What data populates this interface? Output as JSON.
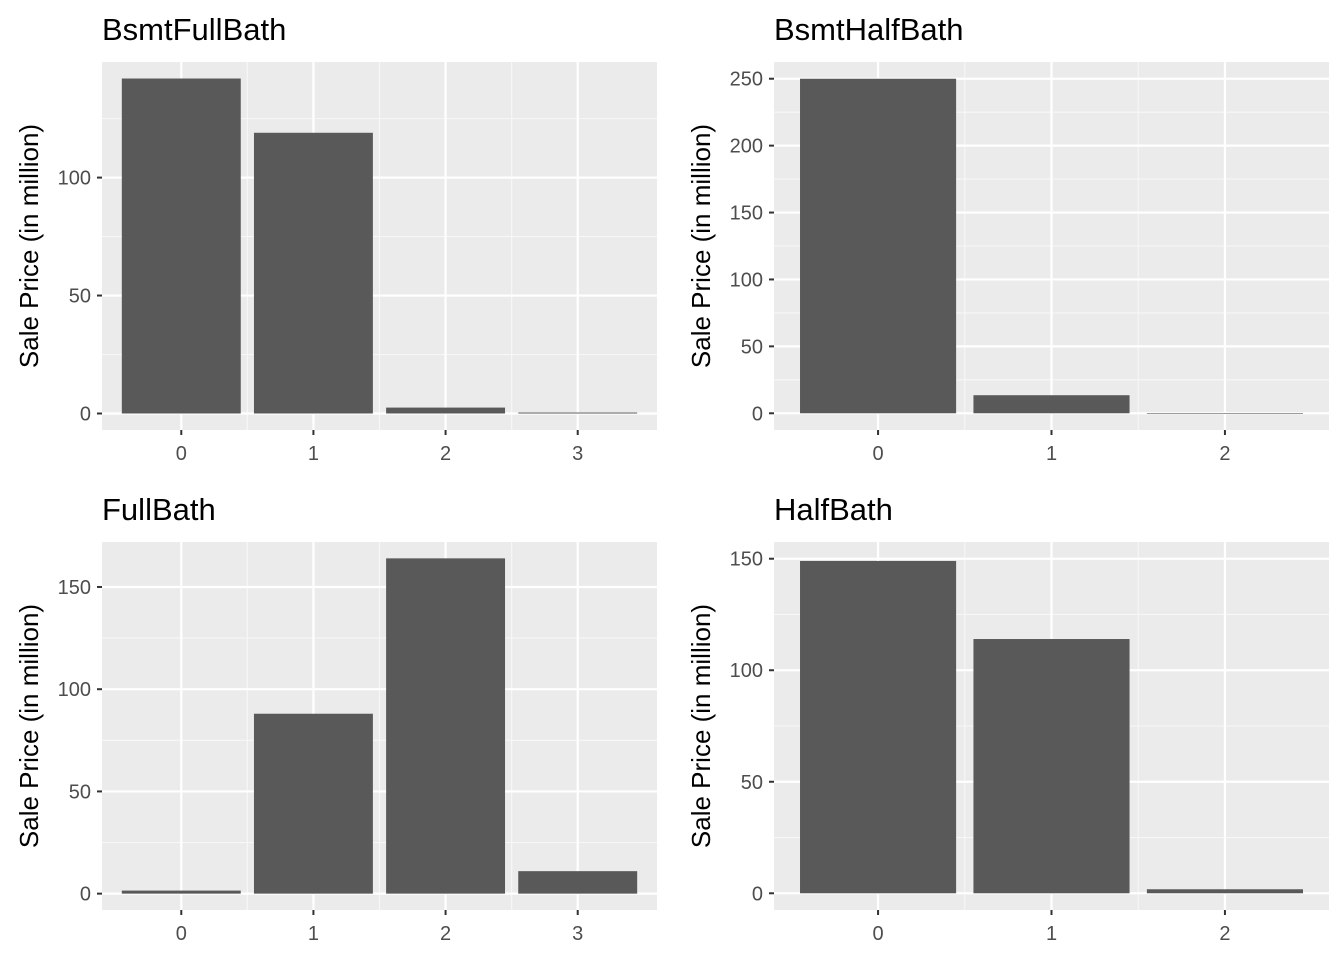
{
  "chart_data": [
    {
      "type": "bar",
      "title": "BsmtFullBath",
      "xlabel": "",
      "ylabel": "Sale Price (in million)",
      "categories": [
        "0",
        "1",
        "2",
        "3"
      ],
      "values": [
        142,
        119,
        2.5,
        0.4
      ],
      "ylim": [
        -7,
        149
      ],
      "yticks": [
        0,
        50,
        100
      ],
      "grid": true,
      "bar_color": "#595959"
    },
    {
      "type": "bar",
      "title": "BsmtHalfBath",
      "xlabel": "",
      "ylabel": "Sale Price (in million)",
      "categories": [
        "0",
        "1",
        "2"
      ],
      "values": [
        250,
        13.5,
        0.2
      ],
      "ylim": [
        -12.5,
        262.5
      ],
      "yticks": [
        0,
        50,
        100,
        150,
        200,
        250
      ],
      "grid": true,
      "bar_color": "#595959"
    },
    {
      "type": "bar",
      "title": "FullBath",
      "xlabel": "",
      "ylabel": "Sale Price (in million)",
      "categories": [
        "0",
        "1",
        "2",
        "3"
      ],
      "values": [
        1.5,
        88,
        164,
        11
      ],
      "ylim": [
        -8,
        172
      ],
      "yticks": [
        0,
        50,
        100,
        150
      ],
      "grid": true,
      "bar_color": "#595959"
    },
    {
      "type": "bar",
      "title": "HalfBath",
      "xlabel": "",
      "ylabel": "Sale Price (in million)",
      "categories": [
        "0",
        "1",
        "2"
      ],
      "values": [
        149,
        114,
        1.8
      ],
      "ylim": [
        -7.5,
        157.5
      ],
      "yticks": [
        0,
        50,
        100,
        150
      ],
      "grid": true,
      "bar_color": "#595959"
    }
  ],
  "style": {
    "panel_bg": "#ebebeb",
    "grid_major": "#ffffff",
    "grid_minor": "#f7f7f7",
    "tick_color": "#4d4d4d",
    "text_color": "#000000"
  }
}
